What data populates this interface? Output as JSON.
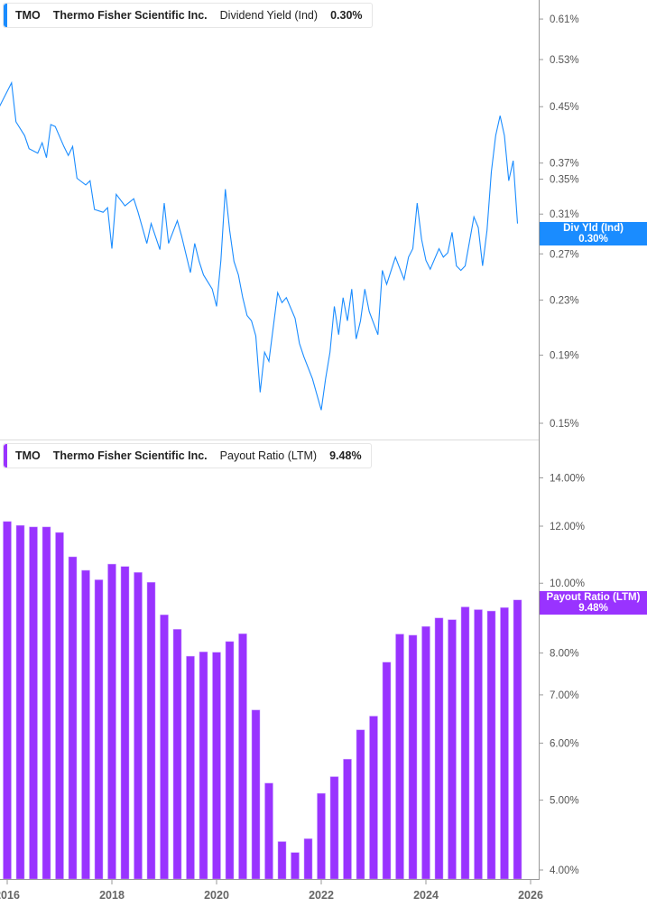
{
  "colors": {
    "div_yield": "#1a8cff",
    "payout": "#9933ff",
    "axis": "#999999",
    "tick_text": "#555555"
  },
  "chart_data": [
    {
      "type": "line",
      "legend": {
        "ticker": "TMO",
        "company": "Thermo Fisher Scientific Inc.",
        "metric": "Dividend Yield (Ind)",
        "value": "0.30%"
      },
      "flag": {
        "label": "Div Yld (Ind)",
        "value": "0.30%"
      },
      "y_scale": "log",
      "ylim": [
        0.15,
        0.63
      ],
      "y_ticks": [
        0.61,
        0.53,
        0.45,
        0.37,
        0.35,
        0.31,
        0.27,
        0.23,
        0.19,
        0.15
      ],
      "y_tick_labels": [
        "0.61%",
        "0.53%",
        "0.45%",
        "0.37%",
        "0.35%",
        "0.31%",
        "0.27%",
        "0.23%",
        "0.19%",
        "0.15%"
      ],
      "grid": false,
      "series": [
        {
          "values": [
            [
              "2015-11",
              0.447
            ],
            [
              "2016-02",
              0.489
            ],
            [
              "2016-03",
              0.427
            ],
            [
              "2016-05",
              0.407
            ],
            [
              "2016-06",
              0.389
            ],
            [
              "2016-08",
              0.383
            ],
            [
              "2016-09",
              0.397
            ],
            [
              "2016-10",
              0.377
            ],
            [
              "2016-11",
              0.423
            ],
            [
              "2016-12",
              0.42
            ],
            [
              "2017-02",
              0.392
            ],
            [
              "2017-03",
              0.38
            ],
            [
              "2017-04",
              0.392
            ],
            [
              "2017-05",
              0.351
            ],
            [
              "2017-07",
              0.343
            ],
            [
              "2017-08",
              0.348
            ],
            [
              "2017-09",
              0.315
            ],
            [
              "2017-11",
              0.312
            ],
            [
              "2017-12",
              0.317
            ],
            [
              "2018-01",
              0.275
            ],
            [
              "2018-02",
              0.332
            ],
            [
              "2018-04",
              0.319
            ],
            [
              "2018-06",
              0.327
            ],
            [
              "2018-07",
              0.312
            ],
            [
              "2018-09",
              0.28
            ],
            [
              "2018-10",
              0.3
            ],
            [
              "2018-12",
              0.274
            ],
            [
              "2019-01",
              0.322
            ],
            [
              "2019-02",
              0.28
            ],
            [
              "2019-04",
              0.303
            ],
            [
              "2019-05",
              0.287
            ],
            [
              "2019-07",
              0.253
            ],
            [
              "2019-08",
              0.28
            ],
            [
              "2019-09",
              0.263
            ],
            [
              "2019-10",
              0.251
            ],
            [
              "2019-12",
              0.239
            ],
            [
              "2020-01",
              0.225
            ],
            [
              "2020-02",
              0.264
            ],
            [
              "2020-03",
              0.338
            ],
            [
              "2020-04",
              0.293
            ],
            [
              "2020-05",
              0.263
            ],
            [
              "2020-06",
              0.251
            ],
            [
              "2020-07",
              0.232
            ],
            [
              "2020-08",
              0.218
            ],
            [
              "2020-09",
              0.214
            ],
            [
              "2020-10",
              0.203
            ],
            [
              "2020-11",
              0.167
            ],
            [
              "2020-12",
              0.192
            ],
            [
              "2021-01",
              0.186
            ],
            [
              "2021-03",
              0.236
            ],
            [
              "2021-04",
              0.228
            ],
            [
              "2021-05",
              0.232
            ],
            [
              "2021-07",
              0.216
            ],
            [
              "2021-08",
              0.198
            ],
            [
              "2021-09",
              0.189
            ],
            [
              "2021-11",
              0.175
            ],
            [
              "2022-01",
              0.157
            ],
            [
              "2022-02",
              0.175
            ],
            [
              "2022-03",
              0.192
            ],
            [
              "2022-04",
              0.225
            ],
            [
              "2022-05",
              0.204
            ],
            [
              "2022-06",
              0.232
            ],
            [
              "2022-07",
              0.214
            ],
            [
              "2022-08",
              0.239
            ],
            [
              "2022-09",
              0.201
            ],
            [
              "2022-10",
              0.214
            ],
            [
              "2022-11",
              0.239
            ],
            [
              "2022-12",
              0.221
            ],
            [
              "2023-02",
              0.204
            ],
            [
              "2023-03",
              0.255
            ],
            [
              "2023-04",
              0.243
            ],
            [
              "2023-06",
              0.267
            ],
            [
              "2023-08",
              0.247
            ],
            [
              "2023-09",
              0.267
            ],
            [
              "2023-10",
              0.275
            ],
            [
              "2023-11",
              0.322
            ],
            [
              "2023-12",
              0.284
            ],
            [
              "2024-01",
              0.264
            ],
            [
              "2024-02",
              0.256
            ],
            [
              "2024-04",
              0.275
            ],
            [
              "2024-05",
              0.267
            ],
            [
              "2024-06",
              0.271
            ],
            [
              "2024-07",
              0.291
            ],
            [
              "2024-08",
              0.259
            ],
            [
              "2024-09",
              0.255
            ],
            [
              "2024-10",
              0.259
            ],
            [
              "2024-12",
              0.307
            ],
            [
              "2025-01",
              0.296
            ],
            [
              "2025-02",
              0.259
            ],
            [
              "2025-03",
              0.293
            ],
            [
              "2025-04",
              0.359
            ],
            [
              "2025-05",
              0.407
            ],
            [
              "2025-06",
              0.436
            ],
            [
              "2025-07",
              0.407
            ],
            [
              "2025-08",
              0.348
            ],
            [
              "2025-09",
              0.373
            ],
            [
              "2025-10",
              0.3
            ]
          ]
        }
      ]
    },
    {
      "type": "bar",
      "legend": {
        "ticker": "TMO",
        "company": "Thermo Fisher Scientific Inc.",
        "metric": "Payout Ratio (LTM)",
        "value": "9.48%"
      },
      "flag": {
        "label": "Payout Ratio (LTM)",
        "value": "9.48%"
      },
      "y_scale": "log",
      "ylim": [
        3.9,
        15.3
      ],
      "y_ticks": [
        14,
        12,
        10,
        8,
        7,
        6,
        5,
        4
      ],
      "y_tick_labels": [
        "14.00%",
        "12.00%",
        "10.00%",
        "8.00%",
        "7.00%",
        "6.00%",
        "5.00%",
        "4.00%"
      ],
      "x_ticks": [
        "2016",
        "2018",
        "2020",
        "2022",
        "2024",
        "2026"
      ],
      "grid": false,
      "categories": [
        "2016-Q1",
        "2016-Q2",
        "2016-Q3",
        "2016-Q4",
        "2017-Q1",
        "2017-Q2",
        "2017-Q3",
        "2017-Q4",
        "2018-Q1",
        "2018-Q2",
        "2018-Q3",
        "2018-Q4",
        "2019-Q1",
        "2019-Q2",
        "2019-Q3",
        "2019-Q4",
        "2020-Q1",
        "2020-Q2",
        "2020-Q3",
        "2020-Q4",
        "2021-Q1",
        "2021-Q2",
        "2021-Q3",
        "2021-Q4",
        "2022-Q1",
        "2022-Q2",
        "2022-Q3",
        "2022-Q4",
        "2023-Q1",
        "2023-Q2",
        "2023-Q3",
        "2023-Q4",
        "2024-Q1",
        "2024-Q2",
        "2024-Q3",
        "2024-Q4",
        "2025-Q1",
        "2025-Q2",
        "2025-Q3",
        "2025-Q4"
      ],
      "values": [
        12.18,
        12.03,
        11.97,
        11.97,
        11.76,
        10.88,
        10.42,
        10.11,
        10.63,
        10.55,
        10.35,
        10.03,
        9.04,
        8.63,
        7.92,
        8.03,
        8.02,
        8.3,
        8.51,
        6.67,
        5.28,
        4.38,
        4.23,
        4.42,
        5.11,
        5.39,
        5.7,
        6.26,
        6.54,
        7.77,
        8.5,
        8.47,
        8.71,
        8.95,
        8.9,
        9.27,
        9.19,
        9.15,
        9.25,
        9.48
      ]
    }
  ]
}
